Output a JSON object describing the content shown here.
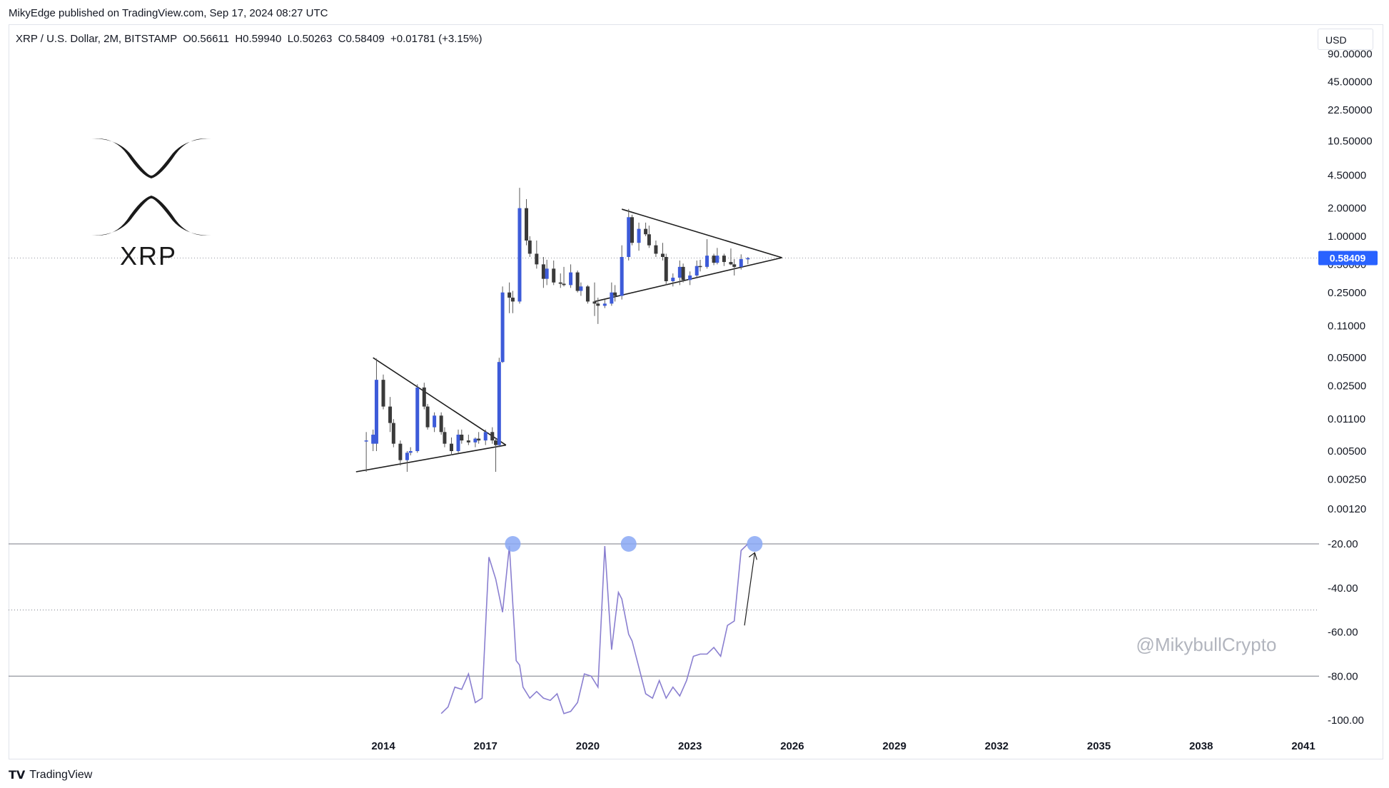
{
  "header": {
    "published": "MikyEdge published on TradingView.com, Sep 17, 2024 08:27 UTC",
    "symbol_line": "XRP / U.S. Dollar, 2M, BITSTAMP  O0.56611  H0.59940  L0.50263  C0.58409  +0.01781 (+3.15%)",
    "currency": "USD"
  },
  "footer": {
    "brand": "TradingView",
    "logo": "tv-logo-icon"
  },
  "logo": {
    "text": "XRP",
    "icon": "xrp-logo-icon"
  },
  "watermark": "@MikybullCrypto",
  "colors": {
    "up": "#3d5bd9",
    "down": "#3a3a3a",
    "oscillator": "#8a7fd0",
    "marker": "#8aa8f5",
    "price_tag": "#2962ff"
  },
  "chart_data": [
    {
      "type": "candlestick",
      "scale": "log",
      "price_axis_ticks": [
        "90.00000",
        "45.00000",
        "22.50000",
        "10.50000",
        "4.50000",
        "2.00000",
        "1.00000",
        "0.50000",
        "0.25000",
        "0.11000",
        "0.05000",
        "0.02500",
        "0.01100",
        "0.00500",
        "0.00250",
        "0.00120"
      ],
      "current_price": "0.58409",
      "time_axis_ticks": [
        "2014",
        "2017",
        "2020",
        "2023",
        "2026",
        "2029",
        "2032",
        "2035",
        "2038",
        "2041"
      ],
      "candles": [
        {
          "t": 2013.5,
          "o": 0.0065,
          "h": 0.008,
          "l": 0.003,
          "c": 0.0065
        },
        {
          "t": 2013.7,
          "o": 0.006,
          "h": 0.0085,
          "l": 0.005,
          "c": 0.0075
        },
        {
          "t": 2013.8,
          "o": 0.006,
          "h": 0.049,
          "l": 0.005,
          "c": 0.029
        },
        {
          "t": 2014.0,
          "o": 0.029,
          "h": 0.033,
          "l": 0.014,
          "c": 0.015
        },
        {
          "t": 2014.2,
          "o": 0.015,
          "h": 0.019,
          "l": 0.008,
          "c": 0.01
        },
        {
          "t": 2014.3,
          "o": 0.01,
          "h": 0.011,
          "l": 0.0055,
          "c": 0.006
        },
        {
          "t": 2014.5,
          "o": 0.006,
          "h": 0.0065,
          "l": 0.0035,
          "c": 0.004
        },
        {
          "t": 2014.7,
          "o": 0.004,
          "h": 0.005,
          "l": 0.003,
          "c": 0.0048
        },
        {
          "t": 2014.8,
          "o": 0.0048,
          "h": 0.0055,
          "l": 0.0045,
          "c": 0.005
        },
        {
          "t": 2015.0,
          "o": 0.005,
          "h": 0.026,
          "l": 0.0048,
          "c": 0.024
        },
        {
          "t": 2015.2,
          "o": 0.024,
          "h": 0.027,
          "l": 0.014,
          "c": 0.015
        },
        {
          "t": 2015.3,
          "o": 0.015,
          "h": 0.016,
          "l": 0.0085,
          "c": 0.009
        },
        {
          "t": 2015.5,
          "o": 0.009,
          "h": 0.013,
          "l": 0.008,
          "c": 0.012
        },
        {
          "t": 2015.7,
          "o": 0.012,
          "h": 0.013,
          "l": 0.0075,
          "c": 0.008
        },
        {
          "t": 2015.8,
          "o": 0.008,
          "h": 0.009,
          "l": 0.0055,
          "c": 0.006
        },
        {
          "t": 2016.0,
          "o": 0.006,
          "h": 0.007,
          "l": 0.0045,
          "c": 0.005
        },
        {
          "t": 2016.2,
          "o": 0.005,
          "h": 0.0085,
          "l": 0.0048,
          "c": 0.0075
        },
        {
          "t": 2016.3,
          "o": 0.0075,
          "h": 0.0085,
          "l": 0.006,
          "c": 0.0065
        },
        {
          "t": 2016.5,
          "o": 0.0065,
          "h": 0.0075,
          "l": 0.0058,
          "c": 0.0062
        },
        {
          "t": 2016.7,
          "o": 0.0062,
          "h": 0.007,
          "l": 0.0055,
          "c": 0.0068
        },
        {
          "t": 2016.8,
          "o": 0.0068,
          "h": 0.008,
          "l": 0.006,
          "c": 0.0065
        },
        {
          "t": 2017.0,
          "o": 0.0065,
          "h": 0.0085,
          "l": 0.0058,
          "c": 0.008
        },
        {
          "t": 2017.2,
          "o": 0.008,
          "h": 0.009,
          "l": 0.006,
          "c": 0.0065
        },
        {
          "t": 2017.3,
          "o": 0.0065,
          "h": 0.007,
          "l": 0.003,
          "c": 0.0058
        },
        {
          "t": 2017.4,
          "o": 0.0058,
          "h": 0.05,
          "l": 0.0055,
          "c": 0.045
        },
        {
          "t": 2017.5,
          "o": 0.045,
          "h": 0.29,
          "l": 0.044,
          "c": 0.25
        },
        {
          "t": 2017.7,
          "o": 0.25,
          "h": 0.32,
          "l": 0.15,
          "c": 0.22
        },
        {
          "t": 2017.8,
          "o": 0.22,
          "h": 0.26,
          "l": 0.15,
          "c": 0.2
        },
        {
          "t": 2018.0,
          "o": 0.2,
          "h": 3.3,
          "l": 0.19,
          "c": 2.0
        },
        {
          "t": 2018.2,
          "o": 2.0,
          "h": 2.5,
          "l": 0.8,
          "c": 0.9
        },
        {
          "t": 2018.3,
          "o": 0.9,
          "h": 1.0,
          "l": 0.6,
          "c": 0.65
        },
        {
          "t": 2018.5,
          "o": 0.65,
          "h": 0.9,
          "l": 0.45,
          "c": 0.5
        },
        {
          "t": 2018.7,
          "o": 0.5,
          "h": 0.6,
          "l": 0.28,
          "c": 0.35
        },
        {
          "t": 2018.8,
          "o": 0.35,
          "h": 0.56,
          "l": 0.3,
          "c": 0.45
        },
        {
          "t": 2019.0,
          "o": 0.45,
          "h": 0.55,
          "l": 0.3,
          "c": 0.32
        },
        {
          "t": 2019.2,
          "o": 0.32,
          "h": 0.4,
          "l": 0.28,
          "c": 0.31
        },
        {
          "t": 2019.3,
          "o": 0.31,
          "h": 0.47,
          "l": 0.29,
          "c": 0.3
        },
        {
          "t": 2019.5,
          "o": 0.3,
          "h": 0.5,
          "l": 0.28,
          "c": 0.41
        },
        {
          "t": 2019.7,
          "o": 0.41,
          "h": 0.43,
          "l": 0.25,
          "c": 0.26
        },
        {
          "t": 2019.8,
          "o": 0.26,
          "h": 0.32,
          "l": 0.23,
          "c": 0.29
        },
        {
          "t": 2020.0,
          "o": 0.29,
          "h": 0.3,
          "l": 0.19,
          "c": 0.2
        },
        {
          "t": 2020.2,
          "o": 0.2,
          "h": 0.32,
          "l": 0.14,
          "c": 0.19
        },
        {
          "t": 2020.3,
          "o": 0.19,
          "h": 0.22,
          "l": 0.115,
          "c": 0.18
        },
        {
          "t": 2020.5,
          "o": 0.18,
          "h": 0.21,
          "l": 0.17,
          "c": 0.19
        },
        {
          "t": 2020.7,
          "o": 0.19,
          "h": 0.32,
          "l": 0.18,
          "c": 0.25
        },
        {
          "t": 2020.8,
          "o": 0.25,
          "h": 0.3,
          "l": 0.2,
          "c": 0.23
        },
        {
          "t": 2021.0,
          "o": 0.23,
          "h": 0.8,
          "l": 0.21,
          "c": 0.6
        },
        {
          "t": 2021.2,
          "o": 0.6,
          "h": 1.96,
          "l": 0.55,
          "c": 1.6
        },
        {
          "t": 2021.3,
          "o": 1.6,
          "h": 1.7,
          "l": 0.8,
          "c": 0.85
        },
        {
          "t": 2021.5,
          "o": 0.85,
          "h": 1.4,
          "l": 0.7,
          "c": 1.2
        },
        {
          "t": 2021.7,
          "o": 1.2,
          "h": 1.4,
          "l": 1.0,
          "c": 1.05
        },
        {
          "t": 2021.8,
          "o": 1.05,
          "h": 1.3,
          "l": 0.75,
          "c": 0.8
        },
        {
          "t": 2022.0,
          "o": 0.8,
          "h": 0.9,
          "l": 0.6,
          "c": 0.65
        },
        {
          "t": 2022.2,
          "o": 0.65,
          "h": 0.85,
          "l": 0.55,
          "c": 0.6
        },
        {
          "t": 2022.3,
          "o": 0.6,
          "h": 0.65,
          "l": 0.3,
          "c": 0.33
        },
        {
          "t": 2022.5,
          "o": 0.33,
          "h": 0.4,
          "l": 0.29,
          "c": 0.36
        },
        {
          "t": 2022.7,
          "o": 0.36,
          "h": 0.55,
          "l": 0.3,
          "c": 0.47
        },
        {
          "t": 2022.8,
          "o": 0.47,
          "h": 0.51,
          "l": 0.32,
          "c": 0.34
        },
        {
          "t": 2023.0,
          "o": 0.34,
          "h": 0.42,
          "l": 0.3,
          "c": 0.38
        },
        {
          "t": 2023.2,
          "o": 0.38,
          "h": 0.55,
          "l": 0.36,
          "c": 0.48
        },
        {
          "t": 2023.3,
          "o": 0.48,
          "h": 0.56,
          "l": 0.42,
          "c": 0.47
        },
        {
          "t": 2023.5,
          "o": 0.47,
          "h": 0.93,
          "l": 0.45,
          "c": 0.62
        },
        {
          "t": 2023.7,
          "o": 0.62,
          "h": 0.65,
          "l": 0.49,
          "c": 0.52
        },
        {
          "t": 2023.8,
          "o": 0.52,
          "h": 0.75,
          "l": 0.5,
          "c": 0.62
        },
        {
          "t": 2024.0,
          "o": 0.62,
          "h": 0.65,
          "l": 0.48,
          "c": 0.53
        },
        {
          "t": 2024.2,
          "o": 0.53,
          "h": 0.74,
          "l": 0.49,
          "c": 0.5
        },
        {
          "t": 2024.3,
          "o": 0.5,
          "h": 0.57,
          "l": 0.38,
          "c": 0.47
        },
        {
          "t": 2024.5,
          "o": 0.47,
          "h": 0.64,
          "l": 0.44,
          "c": 0.57
        },
        {
          "t": 2024.7,
          "o": 0.56611,
          "h": 0.5994,
          "l": 0.50263,
          "c": 0.58409
        }
      ],
      "trendlines": [
        {
          "name": "triangle-1-upper",
          "points": [
            [
              2013.7,
              0.05
            ],
            [
              2017.6,
              0.0058
            ]
          ]
        },
        {
          "name": "triangle-1-lower",
          "points": [
            [
              2013.2,
              0.003
            ],
            [
              2017.6,
              0.0058
            ]
          ]
        },
        {
          "name": "triangle-2-upper",
          "points": [
            [
              2021.0,
              1.95
            ],
            [
              2025.7,
              0.59
            ]
          ]
        },
        {
          "name": "triangle-2-lower",
          "points": [
            [
              2020.2,
              0.2
            ],
            [
              2025.7,
              0.59
            ]
          ]
        }
      ]
    },
    {
      "type": "line",
      "y_axis_ticks": [
        "-20.00",
        "-40.00",
        "-60.00",
        "-80.00",
        "-100.00"
      ],
      "ylim": [
        -100,
        -20
      ],
      "reference_lines": [
        -20,
        -50,
        -80
      ],
      "x": [
        2015.7,
        2015.9,
        2016.1,
        2016.3,
        2016.5,
        2016.7,
        2016.9,
        2017.1,
        2017.3,
        2017.5,
        2017.7,
        2017.9,
        2018.0,
        2018.1,
        2018.3,
        2018.5,
        2018.7,
        2018.9,
        2019.1,
        2019.3,
        2019.5,
        2019.7,
        2019.9,
        2020.1,
        2020.3,
        2020.5,
        2020.7,
        2020.9,
        2021.0,
        2021.2,
        2021.3,
        2021.5,
        2021.7,
        2021.9,
        2022.1,
        2022.3,
        2022.5,
        2022.7,
        2022.9,
        2023.1,
        2023.3,
        2023.5,
        2023.7,
        2023.9,
        2024.1,
        2024.3,
        2024.5,
        2024.7
      ],
      "values": [
        -97,
        -94,
        -85,
        -86,
        -79,
        -92,
        -90,
        -26,
        -36,
        -51,
        -21,
        -73,
        -75,
        -85,
        -90,
        -87,
        -90,
        -91,
        -88,
        -97,
        -96,
        -92,
        -79,
        -80,
        -85,
        -21,
        -68,
        -42,
        -45,
        -61,
        -64,
        -76,
        -88,
        -90,
        -82,
        -90,
        -85,
        -89,
        -82,
        -71,
        -70,
        -70,
        -67,
        -71,
        -57,
        -55,
        -23,
        -20
      ],
      "markers": [
        {
          "x": 2017.8,
          "y": -20
        },
        {
          "x": 2021.2,
          "y": -20
        },
        {
          "x": 2024.9,
          "y": -20
        }
      ],
      "arrow": [
        [
          2024.6,
          -57
        ],
        [
          2024.9,
          -24
        ]
      ]
    }
  ]
}
